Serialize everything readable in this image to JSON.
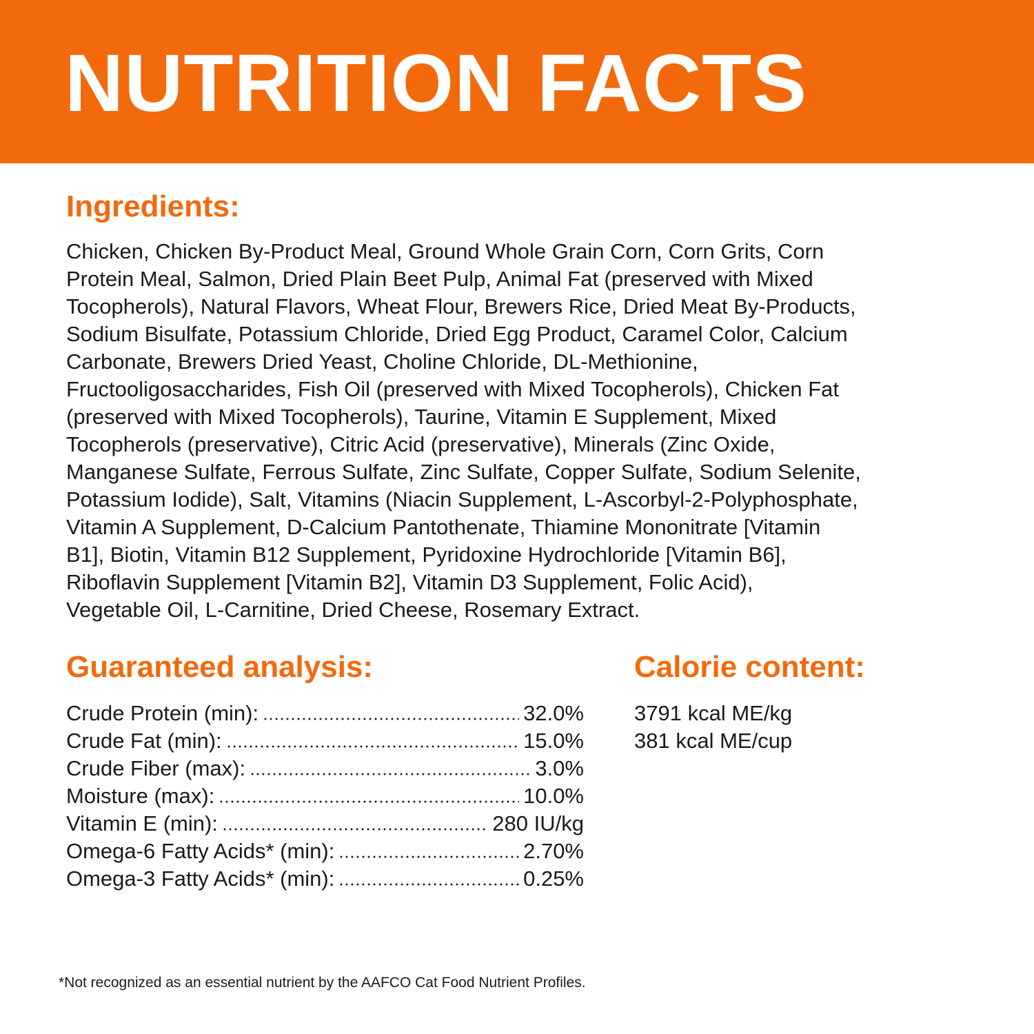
{
  "header": {
    "title": "NUTRITION FACTS"
  },
  "ingredients": {
    "heading": "Ingredients:",
    "lines": [
      "Chicken, Chicken By-Product Meal, Ground Whole Grain Corn, Corn Grits, Corn",
      "Protein Meal, Salmon, Dried Plain Beet Pulp, Animal Fat (preserved with Mixed",
      "Tocopherols), Natural Flavors, Wheat Flour, Brewers Rice, Dried Meat By-Products,",
      "Sodium Bisulfate, Potassium Chloride, Dried Egg Product, Caramel Color, Calcium",
      "Carbonate, Brewers Dried Yeast, Choline Chloride, DL-Methionine,",
      "Fructooligosaccharides, Fish Oil (preserved with Mixed Tocopherols), Chicken Fat",
      "(preserved with Mixed Tocopherols), Taurine, Vitamin E Supplement, Mixed",
      "Tocopherols (preservative), Citric Acid (preservative), Minerals (Zinc Oxide,",
      "Manganese Sulfate, Ferrous Sulfate, Zinc Sulfate, Copper Sulfate, Sodium Selenite,",
      "Potassium Iodide), Salt, Vitamins (Niacin Supplement, L-Ascorbyl-2-Polyphosphate,",
      "Vitamin A Supplement, D-Calcium Pantothenate, Thiamine Mononitrate [Vitamin",
      "B1], Biotin, Vitamin B12 Supplement, Pyridoxine Hydrochloride [Vitamin B6],",
      "Riboflavin Supplement [Vitamin B2], Vitamin D3 Supplement, Folic Acid),",
      "Vegetable Oil, L-Carnitine, Dried Cheese, Rosemary Extract."
    ]
  },
  "analysis": {
    "heading": "Guaranteed analysis:",
    "rows": [
      [
        "Crude Protein (min):",
        "32.0%"
      ],
      [
        "Crude Fat (min):",
        "15.0%"
      ],
      [
        "Crude Fiber (max):",
        "3.0%"
      ],
      [
        "Moisture (max):",
        "10.0%"
      ],
      [
        "Vitamin E (min):",
        "280 IU/kg"
      ],
      [
        "Omega-6 Fatty Acids* (min):",
        "2.70%"
      ],
      [
        "Omega-3 Fatty Acids* (min):",
        "0.25%"
      ]
    ]
  },
  "calories": {
    "heading": "Calorie content:",
    "lines": [
      "3791 kcal ME/kg",
      "381 kcal ME/cup"
    ]
  },
  "footnote": "*Not recognized as an essential nutrient by the AAFCO Cat Food Nutrient Profiles."
}
